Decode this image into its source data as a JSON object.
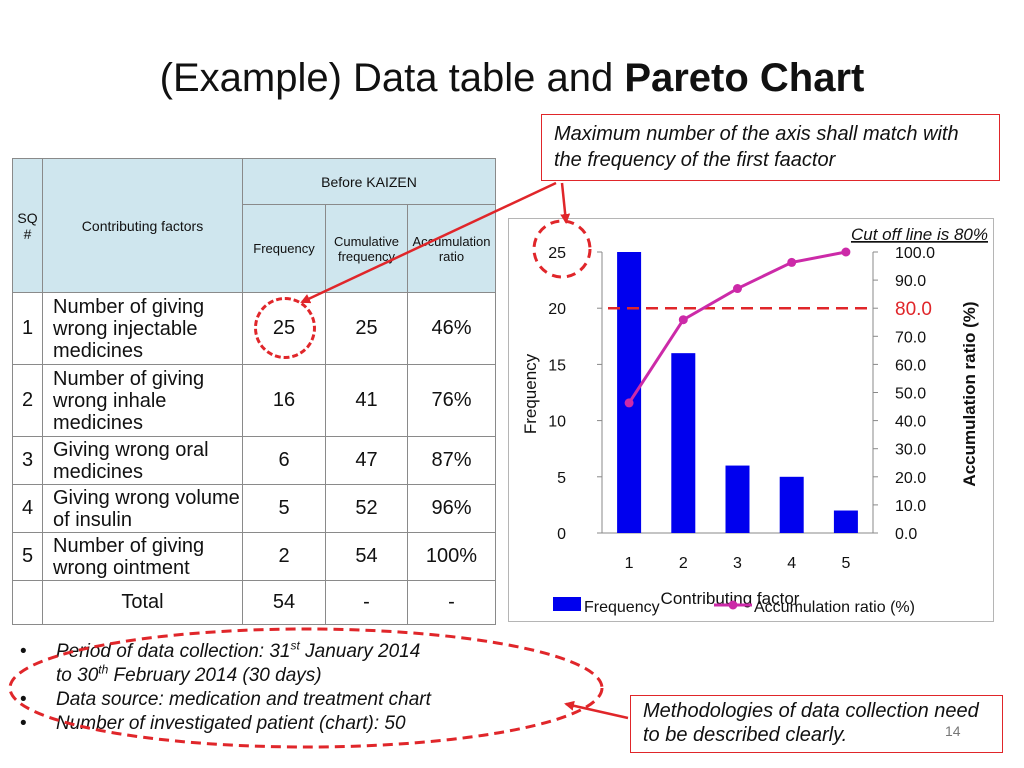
{
  "slide": {
    "title_plain": "(Example) Data table and ",
    "title_bold": "Pareto Chart",
    "page_number": "14"
  },
  "table": {
    "header_sq": "SQ #",
    "header_factors": "Contributing factors",
    "header_group": "Before KAIZEN",
    "header_frequency": "Frequency",
    "header_cumulative": "Cumulative frequency",
    "header_ratio": "Accumulation ratio",
    "rows": [
      {
        "sq": "1",
        "factor": "Number of giving wrong injectable medicines",
        "frequency": "25",
        "cumulative": "25",
        "ratio": "46%"
      },
      {
        "sq": "2",
        "factor": "Number of giving wrong inhale medicines",
        "frequency": "16",
        "cumulative": "41",
        "ratio": "76%"
      },
      {
        "sq": "3",
        "factor": "Giving wrong oral medicines",
        "frequency": "6",
        "cumulative": "47",
        "ratio": "87%"
      },
      {
        "sq": "4",
        "factor": "Giving wrong volume of insulin",
        "frequency": "5",
        "cumulative": "52",
        "ratio": "96%"
      },
      {
        "sq": "5",
        "factor": "Number of giving wrong ointment",
        "frequency": "2",
        "cumulative": "54",
        "ratio": "100%"
      }
    ],
    "total_label": "Total",
    "total_frequency": "54",
    "total_cumulative": "-",
    "total_ratio": "-"
  },
  "callouts": {
    "top": "Maximum number of the axis shall match with the frequency of the first faactor",
    "bottom": "Methodologies of data collection need to be described clearly."
  },
  "notes": {
    "line1_a": "Period of data collection: 31",
    "line1_sup": "st",
    "line1_b": " January 2014",
    "line2_a": "to 30",
    "line2_sup": "th",
    "line2_b": " February 2014 (30 days)",
    "line3": "Data source: medication and treatment chart",
    "line4": "Number of investigated patient (chart): 50"
  },
  "chart_data": {
    "type": "bar",
    "categories": [
      "1",
      "2",
      "3",
      "4",
      "5"
    ],
    "series": [
      {
        "name": "Frequency",
        "kind": "bar",
        "axis": "left",
        "values": [
          25,
          16,
          6,
          5,
          2
        ]
      },
      {
        "name": "Accumulation ratio (%)",
        "kind": "line",
        "axis": "right",
        "values": [
          46.3,
          75.9,
          87.0,
          96.3,
          100.0
        ]
      }
    ],
    "xlabel": "Contributing factor",
    "ylabel": "Frequency",
    "y2label": "Accumulation ratio (%)",
    "ylim": [
      0,
      25
    ],
    "y2lim": [
      0,
      100
    ],
    "yticks": [
      "0",
      "5",
      "10",
      "15",
      "20",
      "25"
    ],
    "y2ticks": [
      "0.0",
      "10.0",
      "20.0",
      "30.0",
      "40.0",
      "50.0",
      "60.0",
      "70.0",
      "80.0",
      "90.0",
      "100.0"
    ],
    "cutoff": {
      "value": 80,
      "label": "80.0",
      "annotation": "Cut off line is 80%"
    },
    "legend_position": "bottom",
    "colors": {
      "bar": "#0000ee",
      "line": "#cc2aa8",
      "cutoff": "#e0262a"
    }
  }
}
